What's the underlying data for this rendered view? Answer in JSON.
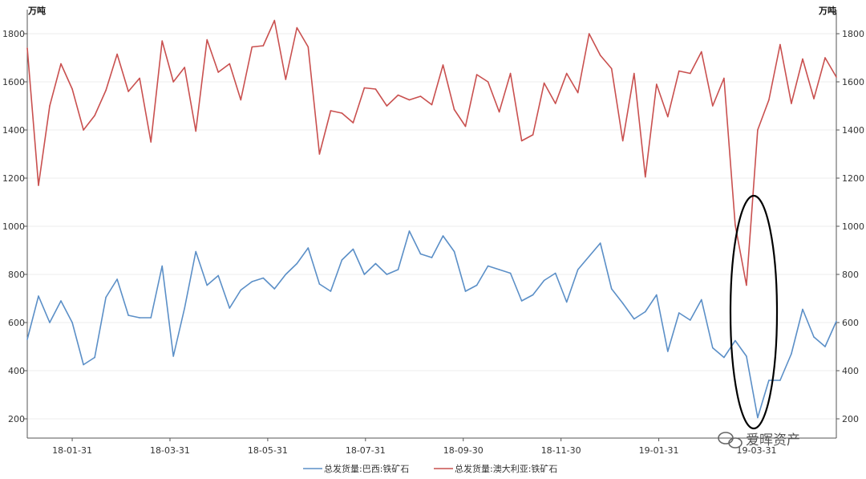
{
  "chart_data": {
    "type": "line",
    "left_axis_unit": "万吨",
    "right_axis_unit": "万吨",
    "y_ticks": [
      200,
      400,
      600,
      800,
      1000,
      1200,
      1400,
      1600,
      1800
    ],
    "ylim": [
      120,
      1900
    ],
    "x_ticks": [
      "18-01-31",
      "18-03-31",
      "18-05-31",
      "18-07-31",
      "18-09-30",
      "18-11-30",
      "19-01-31",
      "19-03-31"
    ],
    "x_tick_index": [
      4,
      12.7,
      21.4,
      30.1,
      38.8,
      47.5,
      56.2,
      64.9
    ],
    "series": [
      {
        "name": "总发货量:巴西:铁矿石",
        "color": "#5b8fc7",
        "values": [
          530,
          710,
          600,
          690,
          600,
          425,
          455,
          705,
          780,
          630,
          620,
          620,
          835,
          460,
          660,
          895,
          755,
          795,
          660,
          735,
          770,
          785,
          740,
          800,
          845,
          910,
          760,
          730,
          860,
          905,
          800,
          845,
          800,
          820,
          980,
          885,
          870,
          960,
          895,
          730,
          755,
          835,
          820,
          805,
          690,
          715,
          775,
          805,
          685,
          820,
          875,
          930,
          740,
          680,
          615,
          645,
          715,
          480,
          640,
          610,
          695,
          495,
          455,
          525,
          460,
          205,
          360,
          360,
          470,
          655,
          540,
          500,
          605
        ]
      },
      {
        "name": "总发货量:澳大利亚:铁矿石",
        "color": "#c9504f",
        "values": [
          1740,
          1170,
          1500,
          1675,
          1570,
          1400,
          1460,
          1565,
          1715,
          1560,
          1615,
          1350,
          1770,
          1600,
          1660,
          1395,
          1775,
          1640,
          1675,
          1525,
          1745,
          1750,
          1855,
          1610,
          1825,
          1745,
          1300,
          1480,
          1470,
          1430,
          1575,
          1570,
          1500,
          1545,
          1525,
          1540,
          1505,
          1670,
          1485,
          1415,
          1630,
          1600,
          1475,
          1635,
          1355,
          1380,
          1595,
          1510,
          1635,
          1555,
          1800,
          1710,
          1655,
          1355,
          1635,
          1205,
          1590,
          1455,
          1645,
          1635,
          1725,
          1500,
          1615,
          1005,
          755,
          1400,
          1525,
          1755,
          1510,
          1695,
          1530,
          1700,
          1620
        ]
      }
    ],
    "annotation": "ellipse highlighting the 2019-03 drop in both series",
    "grid": true,
    "legend": "bottom"
  },
  "watermark": {
    "text": "爱晖资产",
    "icon": "wechat-icon"
  }
}
